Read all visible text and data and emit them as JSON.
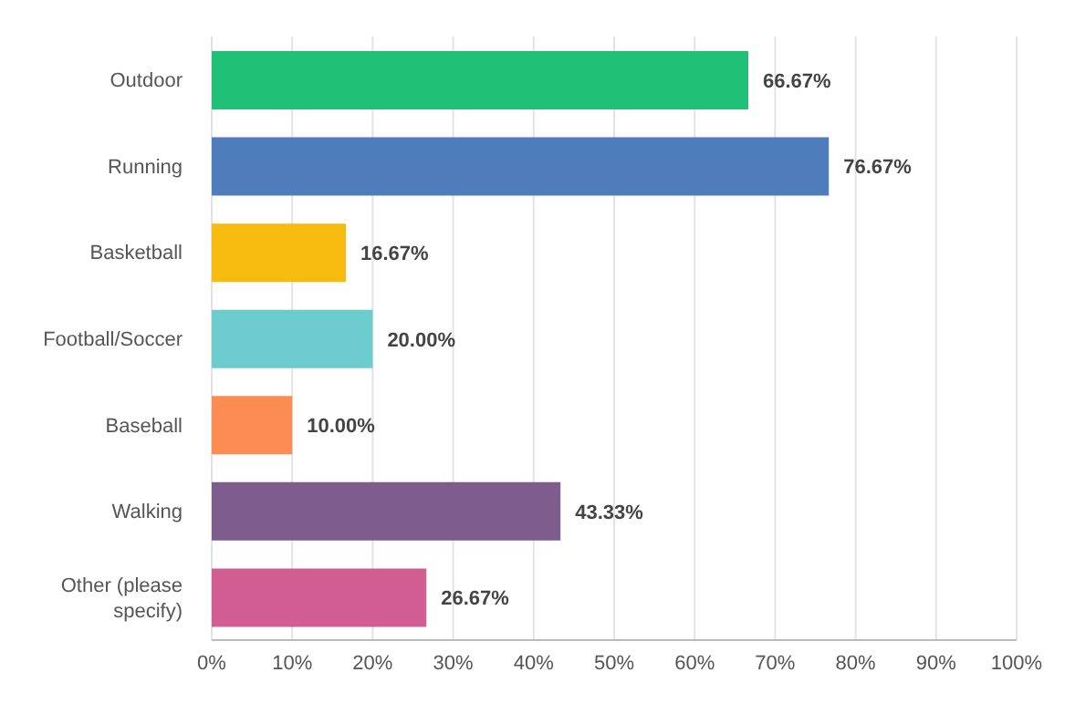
{
  "chart_data": {
    "type": "bar",
    "orientation": "horizontal",
    "categories": [
      "Outdoor",
      "Running",
      "Basketball",
      "Football/Soccer",
      "Baseball",
      "Walking",
      "Other (please specify)"
    ],
    "values": [
      66.67,
      76.67,
      16.67,
      20.0,
      10.0,
      43.33,
      26.67
    ],
    "colors": [
      "#20c177",
      "#4f7dbb",
      "#f7bb10",
      "#6ccbcc",
      "#fc8c52",
      "#7e5c8e",
      "#d15d92"
    ],
    "value_labels": [
      "66.67%",
      "76.67%",
      "16.67%",
      "20.00%",
      "10.00%",
      "43.33%",
      "26.67%"
    ],
    "xlim": [
      0,
      100
    ],
    "xticks": [
      {
        "value": 0,
        "label": "0%"
      },
      {
        "value": 10,
        "label": "10%"
      },
      {
        "value": 20,
        "label": "20%"
      },
      {
        "value": 30,
        "label": "30%"
      },
      {
        "value": 40,
        "label": "40%"
      },
      {
        "value": 50,
        "label": "50%"
      },
      {
        "value": 60,
        "label": "60%"
      },
      {
        "value": 70,
        "label": "70%"
      },
      {
        "value": 80,
        "label": "80%"
      },
      {
        "value": 90,
        "label": "90%"
      },
      {
        "value": 100,
        "label": "100%"
      }
    ],
    "grid": "x"
  }
}
